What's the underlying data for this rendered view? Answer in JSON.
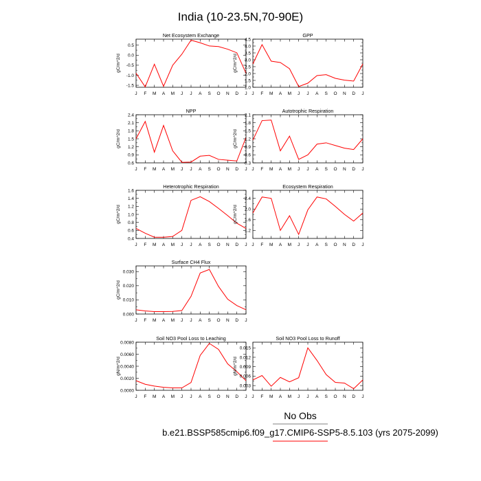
{
  "figure": {
    "title": "India (10-23.5N,70-90E)",
    "legend_label": "No Obs",
    "case_label": "b.e21.BSSP585cmip6.f09_g17.CMIP6-SSP5-8.5.103 (yrs 2075-2099)",
    "line_color": "#ff0000"
  },
  "chart_data": [
    {
      "type": "line",
      "title": "Net Ecosystem Exchange",
      "ylabel": "gC/m^2/d",
      "x": [
        "J",
        "F",
        "M",
        "A",
        "M",
        "J",
        "J",
        "A",
        "S",
        "O",
        "N",
        "D",
        "J"
      ],
      "ylim": [
        -1.6,
        0.8
      ],
      "yticks": [
        -1.5,
        -1.0,
        -0.5,
        0.0,
        0.5
      ],
      "yticklabels": [
        "-1.5",
        "-1.0",
        "-0.5",
        "0.0",
        "0.5"
      ],
      "values": [
        -0.9,
        -1.58,
        -0.45,
        -1.55,
        -0.5,
        0.05,
        0.75,
        0.62,
        0.46,
        0.43,
        0.3,
        0.12,
        -0.9
      ]
    },
    {
      "type": "line",
      "title": "GPP",
      "ylabel": "gC/m^2/d",
      "x": [
        "J",
        "F",
        "M",
        "A",
        "M",
        "J",
        "J",
        "A",
        "S",
        "O",
        "N",
        "D",
        "J"
      ],
      "ylim": [
        1.0,
        4.5
      ],
      "yticks": [
        1.0,
        1.5,
        2.0,
        2.5,
        3.0,
        3.5,
        4.0,
        4.5
      ],
      "yticklabels": [
        "1.0",
        "1.5",
        "2.0",
        "2.5",
        "3.0",
        "3.5",
        "4.0",
        "4.5"
      ],
      "values": [
        2.7,
        4.1,
        2.9,
        2.8,
        2.35,
        1.05,
        1.3,
        1.85,
        1.92,
        1.65,
        1.52,
        1.45,
        2.7
      ]
    },
    {
      "type": "line",
      "title": "NPP",
      "ylabel": "gC/m^2/d",
      "x": [
        "J",
        "F",
        "M",
        "A",
        "M",
        "J",
        "J",
        "A",
        "S",
        "O",
        "N",
        "D",
        "J"
      ],
      "ylim": [
        0.6,
        2.4
      ],
      "yticks": [
        0.6,
        0.9,
        1.2,
        1.5,
        1.8,
        2.1,
        2.4
      ],
      "yticklabels": [
        "0.6",
        "0.9",
        "1.2",
        "1.5",
        "1.8",
        "2.1",
        "2.4"
      ],
      "values": [
        1.5,
        2.15,
        1.0,
        2.0,
        1.05,
        0.62,
        0.63,
        0.85,
        0.88,
        0.73,
        0.7,
        0.67,
        1.55
      ]
    },
    {
      "type": "line",
      "title": "Autotrophic Respiration",
      "ylabel": "gC/m^2/d",
      "x": [
        "J",
        "F",
        "M",
        "A",
        "M",
        "J",
        "J",
        "A",
        "S",
        "O",
        "N",
        "D",
        "J"
      ],
      "ylim": [
        0.3,
        2.1
      ],
      "yticks": [
        0.3,
        0.6,
        0.9,
        1.2,
        1.5,
        1.8,
        2.1
      ],
      "yticklabels": [
        "0.3",
        "0.6",
        "0.9",
        "1.2",
        "1.5",
        "1.8",
        "2.1"
      ],
      "values": [
        1.15,
        1.88,
        1.9,
        0.75,
        1.3,
        0.43,
        0.6,
        1.0,
        1.05,
        0.95,
        0.85,
        0.8,
        1.2
      ]
    },
    {
      "type": "line",
      "title": "Heterotrophic Respiration",
      "ylabel": "gC/m^2/d",
      "x": [
        "J",
        "F",
        "M",
        "A",
        "M",
        "J",
        "J",
        "A",
        "S",
        "O",
        "N",
        "D",
        "J"
      ],
      "ylim": [
        0.4,
        1.6
      ],
      "yticks": [
        0.4,
        0.6,
        0.8,
        1.0,
        1.2,
        1.4,
        1.6
      ],
      "yticklabels": [
        "0.4",
        "0.6",
        "0.8",
        "1.0",
        "1.2",
        "1.4",
        "1.6"
      ],
      "values": [
        0.65,
        0.53,
        0.43,
        0.43,
        0.45,
        0.6,
        1.35,
        1.44,
        1.32,
        1.15,
        0.97,
        0.78,
        0.65
      ]
    },
    {
      "type": "line",
      "title": "Ecosystem Respiration",
      "ylabel": "gC/m^2/d",
      "x": [
        "J",
        "F",
        "M",
        "A",
        "M",
        "J",
        "J",
        "A",
        "S",
        "O",
        "N",
        "D",
        "J"
      ],
      "ylim": [
        0.9,
        2.7
      ],
      "yticks": [
        1.2,
        1.6,
        2.0,
        2.4
      ],
      "yticklabels": [
        "1.2",
        "1.6",
        "2.0",
        "2.4"
      ],
      "values": [
        1.85,
        2.45,
        2.4,
        1.2,
        1.75,
        1.05,
        1.97,
        2.45,
        2.38,
        2.1,
        1.8,
        1.55,
        1.85
      ]
    },
    {
      "type": "line",
      "title": "Surface CH4 Flux",
      "ylabel": "gC/m^2/d",
      "x": [
        "J",
        "F",
        "M",
        "A",
        "M",
        "J",
        "J",
        "A",
        "S",
        "O",
        "N",
        "D",
        "J"
      ],
      "ylim": [
        0.0,
        0.034
      ],
      "yticks": [
        0.0,
        0.01,
        0.02,
        0.03
      ],
      "yticklabels": [
        "0.000",
        "0.010",
        "0.020",
        "0.030"
      ],
      "values": [
        0.003,
        0.0022,
        0.0017,
        0.0017,
        0.0018,
        0.0025,
        0.0125,
        0.029,
        0.0315,
        0.0195,
        0.0105,
        0.006,
        0.003
      ]
    },
    {
      "type": "line",
      "title": "Soil NO3 Pool Loss to Leaching",
      "ylabel": "gN/m^2/d",
      "x": [
        "J",
        "F",
        "M",
        "A",
        "M",
        "J",
        "J",
        "A",
        "S",
        "O",
        "N",
        "D",
        "J"
      ],
      "ylim": [
        0.0,
        0.008
      ],
      "yticks": [
        0.0,
        0.002,
        0.004,
        0.006,
        0.008
      ],
      "yticklabels": [
        "0.0000",
        "0.0020",
        "0.0040",
        "0.0060",
        "0.0080"
      ],
      "values": [
        0.0016,
        0.001,
        0.0007,
        0.0005,
        0.0004,
        0.0004,
        0.0013,
        0.0058,
        0.0078,
        0.0068,
        0.0044,
        0.0031,
        0.0016
      ]
    },
    {
      "type": "line",
      "title": "Soil NO3 Pool Loss to Runoff",
      "ylabel": "gN/m^2/d",
      "x": [
        "J",
        "F",
        "M",
        "A",
        "M",
        "J",
        "J",
        "A",
        "S",
        "O",
        "N",
        "D",
        "J"
      ],
      "ylim": [
        0.0015,
        0.0168
      ],
      "yticks": [
        0.003,
        0.006,
        0.009,
        0.012,
        0.015
      ],
      "yticklabels": [
        "0.003",
        "0.006",
        "0.009",
        "0.012",
        "0.015"
      ],
      "values": [
        0.0048,
        0.0062,
        0.0028,
        0.0056,
        0.0042,
        0.0055,
        0.015,
        0.011,
        0.0065,
        0.004,
        0.0038,
        0.002,
        0.0048
      ]
    }
  ]
}
